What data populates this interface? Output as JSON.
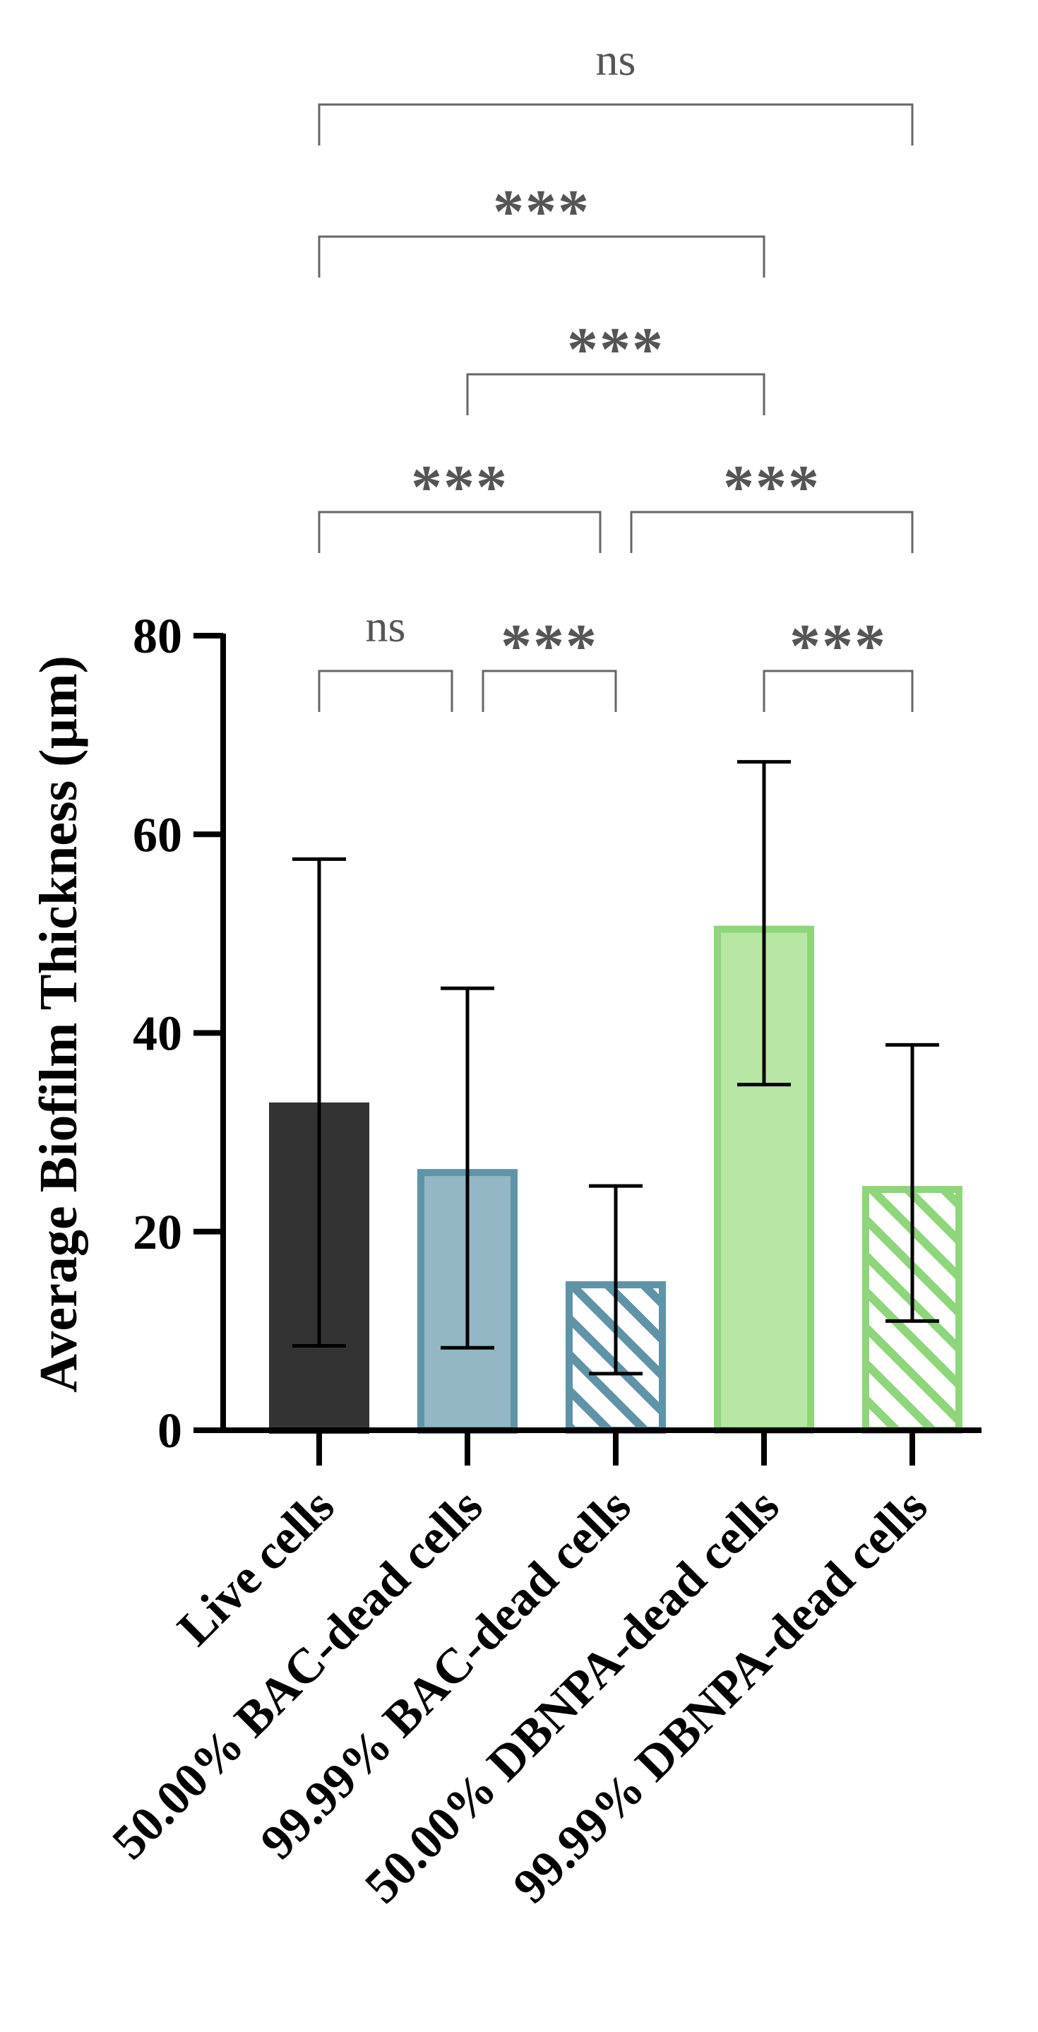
{
  "chart_data": {
    "type": "bar",
    "title": "",
    "xlabel": "",
    "ylabel": "Average Biofilm Thickness (µm)",
    "ylim": [
      0,
      80
    ],
    "yticks": [
      0,
      20,
      40,
      60,
      80
    ],
    "grid": false,
    "categories": [
      "Live cells",
      "50.00% BAC-dead cells",
      "99.99% BAC-dead cells",
      "50.00% DBNPA-dead cells",
      "99.99% DBNPA-dead cells"
    ],
    "values": [
      33,
      26.3,
      15,
      50.8,
      24.6
    ],
    "error_low": [
      8.5,
      8.3,
      5.7,
      34.8,
      11
    ],
    "error_high": [
      57.5,
      44.5,
      24.6,
      67.3,
      38.8
    ],
    "styles": [
      {
        "fill": "#333333",
        "stroke": "#333333",
        "hatched": false
      },
      {
        "fill": "#93b7c4",
        "stroke": "#5f94a8",
        "hatched": false
      },
      {
        "fill": "#ffffff",
        "stroke": "#5f94a8",
        "hatched": true
      },
      {
        "fill": "#b8e6a4",
        "stroke": "#8ed67a",
        "hatched": false
      },
      {
        "fill": "#ffffff",
        "stroke": "#8ed67a",
        "hatched": true
      }
    ],
    "comparisons": [
      {
        "from": 0,
        "to": 1,
        "label": "ns",
        "level": 0
      },
      {
        "from": 1,
        "to": 2,
        "label": "***",
        "level": 0
      },
      {
        "from": 3,
        "to": 4,
        "label": "***",
        "level": 0
      },
      {
        "from": 0,
        "to": 2,
        "label": "***",
        "level": 1
      },
      {
        "from": 2,
        "to": 4,
        "label": "***",
        "level": 1
      },
      {
        "from": 1,
        "to": 3,
        "label": "***",
        "level": 2
      },
      {
        "from": 0,
        "to": 3,
        "label": "***",
        "level": 3
      },
      {
        "from": 0,
        "to": 4,
        "label": "ns",
        "level": 4
      }
    ]
  }
}
